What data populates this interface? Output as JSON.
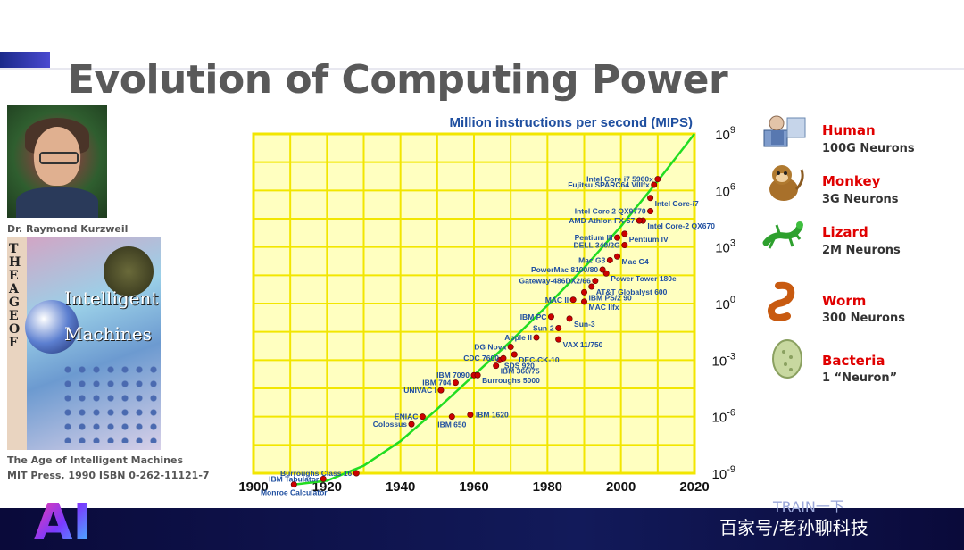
{
  "slide": {
    "title": "Evolution of Computing Power",
    "portrait_caption": "Dr. Raymond Kurzweil",
    "book_caption_line1": "The Age of Intelligent Machines",
    "book_caption_line2": "MIT Press, 1990 ISBN 0-262-11121-7",
    "book_cover_title_letters": "THE AGE OF",
    "book_cover_title_words": [
      "Intelligent",
      "Machines"
    ],
    "watermark_top": "TRAIN一下",
    "watermark_bottom": "百家号/老孙聊科技",
    "logo_text": "AI"
  },
  "brains": [
    {
      "name": "Human",
      "neurons": "100G Neurons",
      "icon": "human-icon",
      "color": "#e00000"
    },
    {
      "name": "Monkey",
      "neurons": "3G Neurons",
      "icon": "monkey-icon",
      "color": "#e00000"
    },
    {
      "name": "Lizard",
      "neurons": "2M Neurons",
      "icon": "lizard-icon",
      "color": "#e00000"
    },
    {
      "name": "Worm",
      "neurons": "300 Neurons",
      "icon": "worm-icon",
      "color": "#e00000"
    },
    {
      "name": "Bacteria",
      "neurons": "1 “Neuron”",
      "icon": "bacteria-icon",
      "color": "#e00000"
    }
  ],
  "chart_data": {
    "type": "scatter",
    "title": "Million instructions per second (MIPS)",
    "xlabel": "",
    "ylabel": "",
    "xlim": [
      1900,
      2020
    ],
    "ylim_log10": [
      -9,
      9
    ],
    "y_log_scale": true,
    "grid": true,
    "background_color": "#ffffc0",
    "grid_color": "#f2e600",
    "point_color": "#cc0000",
    "curve_color": "#22dd22",
    "label_color": "#1f4fa0",
    "x_ticks": [
      {
        "value": 1900,
        "label": "1900"
      },
      {
        "value": 1920,
        "label": "1920"
      },
      {
        "value": 1940,
        "label": "1940"
      },
      {
        "value": 1960,
        "label": "1960"
      },
      {
        "value": 1980,
        "label": "1980"
      },
      {
        "value": 2000,
        "label": "2000"
      },
      {
        "value": 2020,
        "label": "2020"
      }
    ],
    "y_ticks": [
      {
        "exp": 9,
        "base": "10",
        "sup": "9"
      },
      {
        "exp": 6,
        "base": "10",
        "sup": "6"
      },
      {
        "exp": 3,
        "base": "10",
        "sup": "3"
      },
      {
        "exp": 0,
        "base": "10",
        "sup": "0"
      },
      {
        "exp": -3,
        "base": "10",
        "sup": "-3"
      },
      {
        "exp": -6,
        "base": "10",
        "sup": "-6"
      },
      {
        "exp": -9,
        "base": "10",
        "sup": "-9"
      }
    ],
    "points": [
      {
        "label": "Monroe Calculator",
        "year": 1911,
        "log10": -9.6,
        "side": "below"
      },
      {
        "label": "IBM Tabulator",
        "year": 1919,
        "log10": -9.3,
        "side": "left"
      },
      {
        "label": "Burroughs Class 16",
        "year": 1928,
        "log10": -9.0,
        "side": "left"
      },
      {
        "label": "Colossus",
        "year": 1943,
        "log10": -6.4,
        "side": "left"
      },
      {
        "label": "ENIAC",
        "year": 1946,
        "log10": -6.0,
        "side": "left"
      },
      {
        "label": "IBM 650",
        "year": 1954,
        "log10": -6.0,
        "side": "below"
      },
      {
        "label": "IBM 1620",
        "year": 1959,
        "log10": -5.9,
        "side": "right"
      },
      {
        "label": "UNIVAC I",
        "year": 1951,
        "log10": -4.6,
        "side": "left"
      },
      {
        "label": "IBM 704",
        "year": 1955,
        "log10": -4.2,
        "side": "left"
      },
      {
        "label": "IBM 7090",
        "year": 1960,
        "log10": -3.8,
        "side": "left"
      },
      {
        "label": "Burroughs 5000",
        "year": 1961,
        "log10": -3.8,
        "side": "rightbelow"
      },
      {
        "label": "IBM 360/75",
        "year": 1966,
        "log10": -3.3,
        "side": "rightbelow"
      },
      {
        "label": "SDS 920",
        "year": 1967,
        "log10": -3.0,
        "side": "rightbelow"
      },
      {
        "label": "CDC 7600",
        "year": 1968,
        "log10": -2.9,
        "side": "left"
      },
      {
        "label": "DEC-CK-10",
        "year": 1971,
        "log10": -2.7,
        "side": "rightbelow"
      },
      {
        "label": "DG Nova",
        "year": 1970,
        "log10": -2.3,
        "side": "left"
      },
      {
        "label": "Apple II",
        "year": 1977,
        "log10": -1.8,
        "side": "left"
      },
      {
        "label": "VAX 11/750",
        "year": 1983,
        "log10": -1.9,
        "side": "rightbelow"
      },
      {
        "label": "Sun-2",
        "year": 1983,
        "log10": -1.3,
        "side": "left"
      },
      {
        "label": "Sun-3",
        "year": 1986,
        "log10": -0.8,
        "side": "rightbelow"
      },
      {
        "label": "IBM PC",
        "year": 1981,
        "log10": -0.7,
        "side": "left"
      },
      {
        "label": "MAC IIfx",
        "year": 1990,
        "log10": 0.1,
        "side": "rightbelow"
      },
      {
        "label": "MAC II",
        "year": 1987,
        "log10": 0.2,
        "side": "left"
      },
      {
        "label": "IBM PS/2 90",
        "year": 1990,
        "log10": 0.6,
        "side": "rightbelow"
      },
      {
        "label": "AT&T Globalyst 600",
        "year": 1992,
        "log10": 0.9,
        "side": "rightbelow"
      },
      {
        "label": "Gateway-486DX2/66",
        "year": 1993,
        "log10": 1.2,
        "side": "left"
      },
      {
        "label": "Power Tower 180e",
        "year": 1996,
        "log10": 1.6,
        "side": "rightbelow"
      },
      {
        "label": "PowerMac 8100/80",
        "year": 1995,
        "log10": 1.8,
        "side": "left"
      },
      {
        "label": "Mac G4",
        "year": 1999,
        "log10": 2.5,
        "side": "rightbelow"
      },
      {
        "label": "Mac G3",
        "year": 1997,
        "log10": 2.3,
        "side": "left"
      },
      {
        "label": "DELL 340/2G",
        "year": 2001,
        "log10": 3.1,
        "side": "left"
      },
      {
        "label": "Pentium IV",
        "year": 2001,
        "log10": 3.7,
        "side": "rightbelow"
      },
      {
        "label": "Pentium III",
        "year": 1999,
        "log10": 3.5,
        "side": "left"
      },
      {
        "label": "Intel Core-2 QX670",
        "year": 2006,
        "log10": 4.4,
        "side": "rightbelow"
      },
      {
        "label": "AMD Athlon FX-57",
        "year": 2005,
        "log10": 4.4,
        "side": "left"
      },
      {
        "label": "Intel Core 2 QX9770",
        "year": 2008,
        "log10": 4.9,
        "side": "left"
      },
      {
        "label": "Intel Core-i7",
        "year": 2008,
        "log10": 5.6,
        "side": "rightbelow"
      },
      {
        "label": "Fujitsu SPARC64 VIIIfx",
        "year": 2009,
        "log10": 6.3,
        "side": "left"
      },
      {
        "label": "Intel Core i7 5960x",
        "year": 2010,
        "log10": 6.6,
        "side": "left"
      }
    ],
    "trend_curve": [
      {
        "year": 1911,
        "log10": -9.6
      },
      {
        "year": 1920,
        "log10": -9.4
      },
      {
        "year": 1930,
        "log10": -8.6
      },
      {
        "year": 1940,
        "log10": -7.3
      },
      {
        "year": 1950,
        "log10": -5.6
      },
      {
        "year": 1960,
        "log10": -3.8
      },
      {
        "year": 1970,
        "log10": -2.0
      },
      {
        "year": 1980,
        "log10": -0.1
      },
      {
        "year": 1990,
        "log10": 1.9
      },
      {
        "year": 2000,
        "log10": 4.1
      },
      {
        "year": 2010,
        "log10": 6.5
      },
      {
        "year": 2020,
        "log10": 9.0
      }
    ]
  }
}
